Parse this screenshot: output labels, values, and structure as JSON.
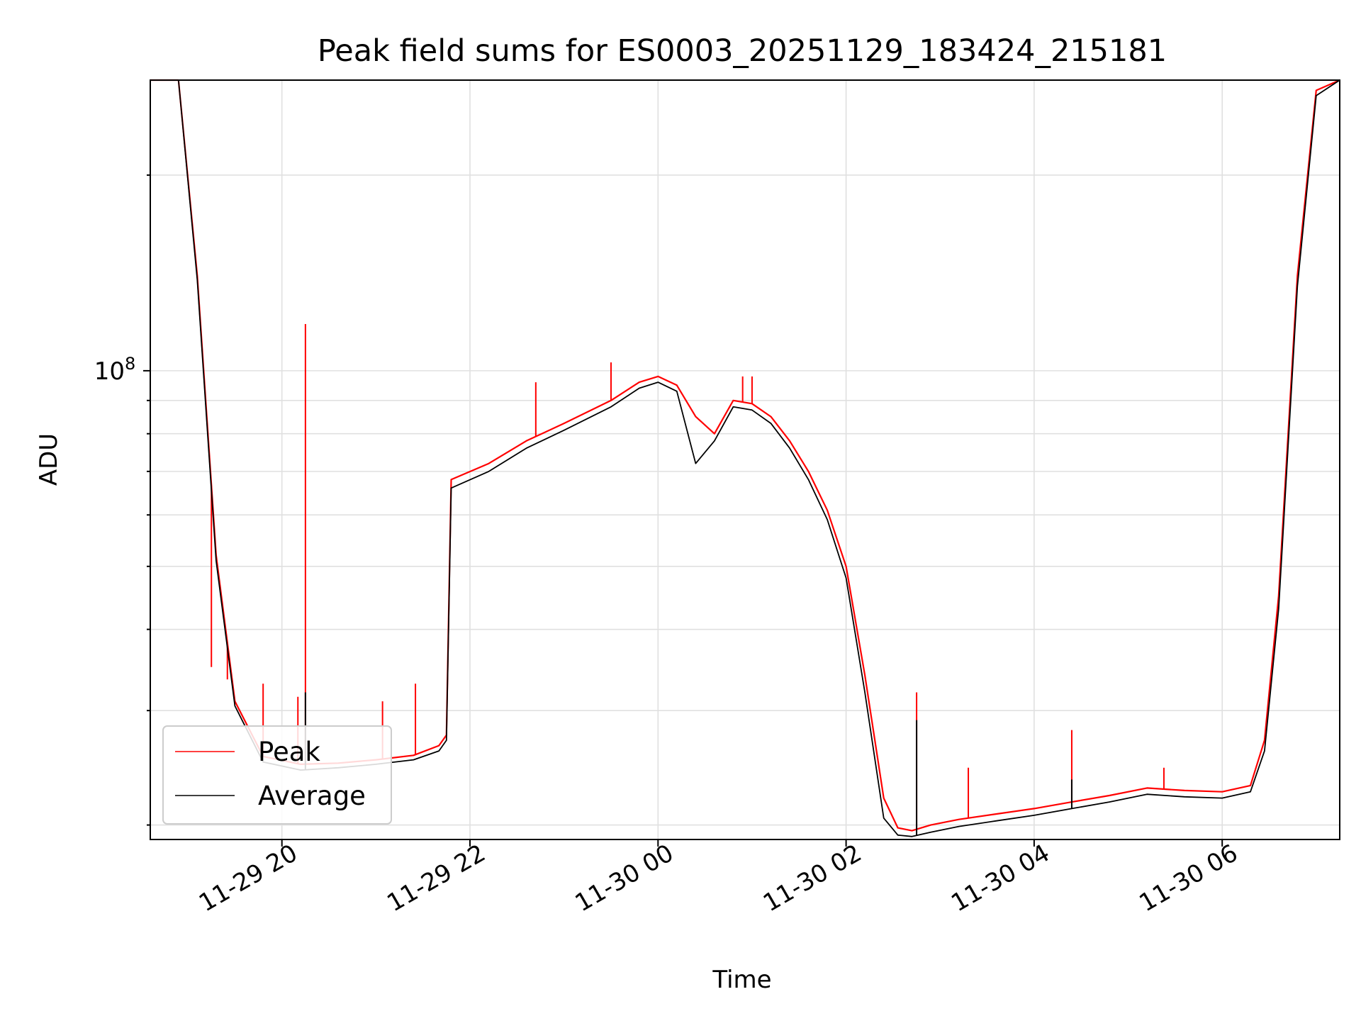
{
  "chart_data": {
    "type": "line",
    "title": "Peak field sums for ES0003_20251129_183424_215181",
    "xlabel": "Time",
    "ylabel": "ADU",
    "yscale": "log",
    "ylim": [
      19000000,
      280000000
    ],
    "xlim_hours": [
      18.6,
      31.25
    ],
    "grid": true,
    "legend_position": "lower-left",
    "x_ticks": [
      {
        "hours": 20,
        "label": "11-29 20"
      },
      {
        "hours": 22,
        "label": "11-29 22"
      },
      {
        "hours": 24,
        "label": "11-30 00"
      },
      {
        "hours": 26,
        "label": "11-30 02"
      },
      {
        "hours": 28,
        "label": "11-30 04"
      },
      {
        "hours": 30,
        "label": "11-30 06"
      }
    ],
    "y_major_ticks": [
      {
        "value": 100000000,
        "label_base": "10",
        "label_exp": "8"
      }
    ],
    "y_minor_ticks": [
      20000000,
      30000000,
      40000000,
      50000000,
      60000000,
      70000000,
      80000000,
      90000000,
      200000000
    ],
    "series": [
      {
        "name": "Peak",
        "color": "#ff0000",
        "x_hours": [
          18.6,
          18.9,
          19.1,
          19.3,
          19.5,
          19.8,
          20.2,
          20.6,
          21.0,
          21.4,
          21.67,
          21.75,
          21.8,
          22.2,
          22.6,
          23.0,
          23.5,
          23.8,
          24.0,
          24.2,
          24.4,
          24.6,
          24.8,
          25.0,
          25.2,
          25.4,
          25.6,
          25.8,
          26.0,
          26.2,
          26.4,
          26.55,
          26.7,
          26.9,
          27.2,
          27.6,
          28.0,
          28.4,
          28.8,
          29.2,
          29.6,
          30.0,
          30.3,
          30.45,
          30.6,
          30.8,
          31.0,
          31.25
        ],
        "y": [
          280000000,
          280000000,
          140000000,
          52000000,
          31000000,
          25500000,
          24800000,
          24900000,
          25200000,
          25600000,
          26500000,
          27500000,
          68000000,
          72000000,
          78000000,
          83000000,
          90000000,
          96000000,
          98000000,
          95000000,
          85000000,
          80000000,
          90000000,
          89000000,
          85000000,
          78000000,
          70000000,
          61000000,
          50000000,
          34000000,
          22000000,
          19800000,
          19600000,
          20000000,
          20400000,
          20800000,
          21200000,
          21700000,
          22200000,
          22800000,
          22600000,
          22500000,
          23000000,
          27000000,
          45000000,
          140000000,
          270000000,
          280000000
        ],
        "spikes": [
          {
            "hours": 19.25,
            "value": 35000000
          },
          {
            "hours": 19.42,
            "value": 33500000
          },
          {
            "hours": 19.8,
            "value": 33000000
          },
          {
            "hours": 20.17,
            "value": 31500000
          },
          {
            "hours": 20.25,
            "value": 118000000
          },
          {
            "hours": 21.07,
            "value": 31000000
          },
          {
            "hours": 21.42,
            "value": 33000000
          },
          {
            "hours": 22.7,
            "value": 96000000
          },
          {
            "hours": 23.5,
            "value": 103000000
          },
          {
            "hours": 24.9,
            "value": 98000000
          },
          {
            "hours": 25.0,
            "value": 98000000
          },
          {
            "hours": 26.75,
            "value": 32000000
          },
          {
            "hours": 27.3,
            "value": 24500000
          },
          {
            "hours": 28.4,
            "value": 28000000
          },
          {
            "hours": 29.38,
            "value": 24500000
          }
        ]
      },
      {
        "name": "Average",
        "color": "#000000",
        "x_hours": [
          18.6,
          18.9,
          19.1,
          19.3,
          19.5,
          19.8,
          20.2,
          20.6,
          21.0,
          21.4,
          21.67,
          21.75,
          21.8,
          22.2,
          22.6,
          23.0,
          23.5,
          23.8,
          24.0,
          24.2,
          24.4,
          24.6,
          24.8,
          25.0,
          25.2,
          25.4,
          25.6,
          25.8,
          26.0,
          26.2,
          26.4,
          26.55,
          26.7,
          26.9,
          27.2,
          27.6,
          28.0,
          28.4,
          28.8,
          29.2,
          29.6,
          30.0,
          30.3,
          30.45,
          30.6,
          30.8,
          31.0,
          31.25
        ],
        "y": [
          280000000,
          280000000,
          138000000,
          51000000,
          30500000,
          25000000,
          24300000,
          24500000,
          24800000,
          25200000,
          26000000,
          27000000,
          66000000,
          70000000,
          76000000,
          81000000,
          88000000,
          94000000,
          96000000,
          93000000,
          72000000,
          78000000,
          88000000,
          87000000,
          83000000,
          76000000,
          68000000,
          59000000,
          48000000,
          32000000,
          20500000,
          19300000,
          19200000,
          19500000,
          19900000,
          20300000,
          20700000,
          21200000,
          21700000,
          22300000,
          22100000,
          22000000,
          22500000,
          26000000,
          43000000,
          135000000,
          265000000,
          280000000
        ],
        "spikes": [
          {
            "hours": 20.25,
            "value": 32000000
          },
          {
            "hours": 26.75,
            "value": 29000000
          },
          {
            "hours": 28.4,
            "value": 23500000
          }
        ]
      }
    ]
  }
}
